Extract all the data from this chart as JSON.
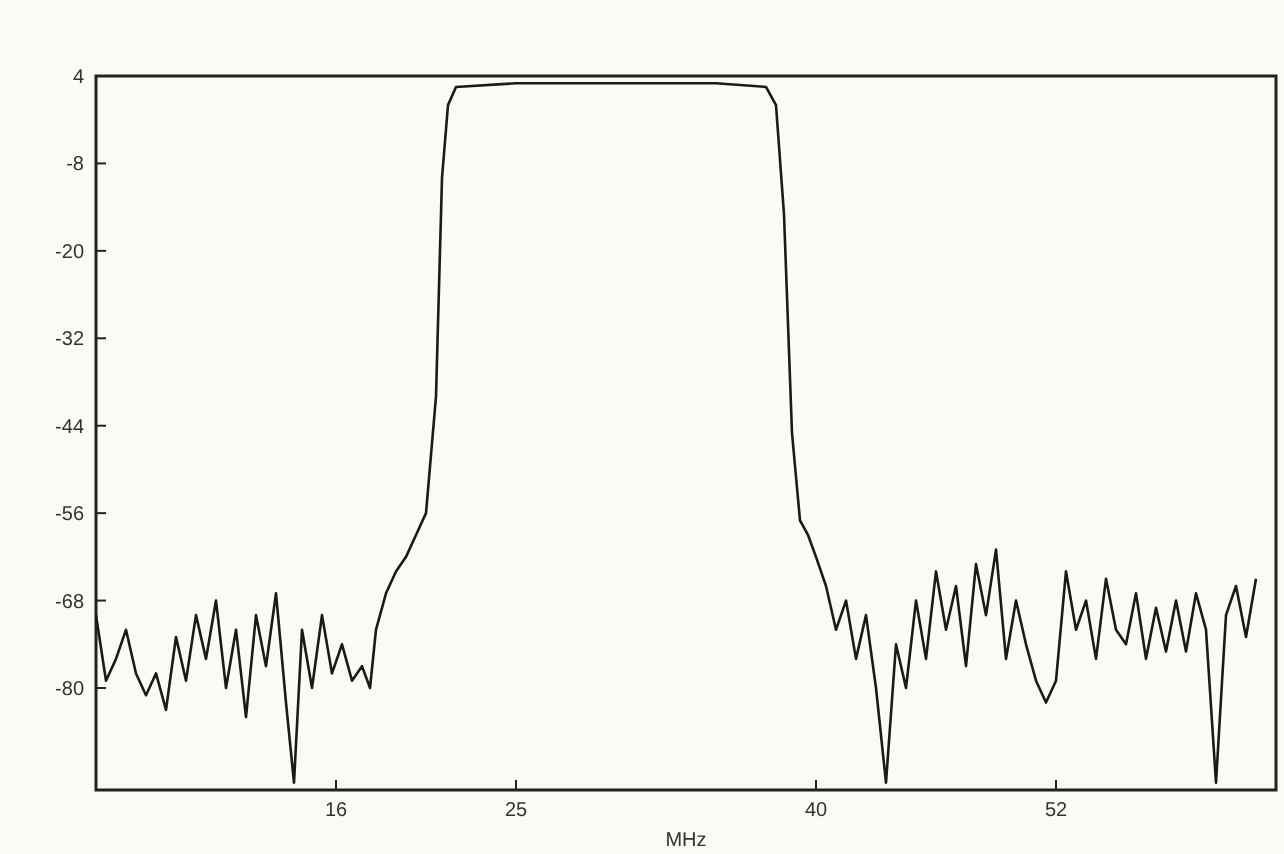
{
  "chart_data": {
    "type": "line",
    "xlabel": "MHz",
    "xlim": [
      4,
      63
    ],
    "xticks": [
      16,
      25,
      40,
      52
    ],
    "ylim": [
      -94,
      4
    ],
    "yticks": [
      4,
      -8,
      -20,
      -32,
      -44,
      -56,
      -68,
      -80
    ],
    "grid": false,
    "marker": "none",
    "line_style": "solid",
    "x": [
      4,
      4.5,
      5,
      5.5,
      6,
      6.5,
      7,
      7.5,
      8,
      8.5,
      9,
      9.5,
      10,
      10.5,
      11,
      11.5,
      12,
      12.5,
      13,
      13.5,
      13.9,
      14.3,
      14.8,
      15.3,
      15.8,
      16.3,
      16.8,
      17.3,
      17.7,
      18,
      18.5,
      19,
      19.5,
      20,
      20.5,
      21,
      21.3,
      21.6,
      22,
      25,
      30,
      35,
      37.5,
      38,
      38.4,
      38.8,
      39.2,
      39.6,
      40,
      40.5,
      41,
      41.5,
      42,
      42.5,
      43,
      43.5,
      44,
      44.5,
      45,
      45.5,
      46,
      46.5,
      47,
      47.5,
      48,
      48.5,
      49,
      49.5,
      50,
      50.5,
      51,
      51.5,
      52,
      52.5,
      53,
      53.5,
      54,
      54.5,
      55,
      55.5,
      56,
      56.5,
      57,
      57.5,
      58,
      58.5,
      59,
      59.5,
      60,
      60.5,
      61,
      61.5,
      62
    ],
    "series": [
      {
        "color": "#1a1a1a",
        "values": [
          -70,
          -79,
          -76,
          -72,
          -78,
          -81,
          -78,
          -83,
          -73,
          -79,
          -70,
          -76,
          -68,
          -80,
          -72,
          -84,
          -70,
          -77,
          -67,
          -82,
          -93,
          -72,
          -80,
          -70,
          -78,
          -74,
          -79,
          -77,
          -80,
          -72,
          -67,
          -64,
          -62,
          -59,
          -56,
          -40,
          -10,
          0,
          2.5,
          3,
          3,
          3,
          2.5,
          0,
          -15,
          -45,
          -57,
          -59,
          -62,
          -66,
          -72,
          -68,
          -76,
          -70,
          -80,
          -93,
          -74,
          -80,
          -68,
          -76,
          -64,
          -72,
          -66,
          -77,
          -63,
          -70,
          -61,
          -76,
          -68,
          -74,
          -79,
          -82,
          -79,
          -64,
          -72,
          -68,
          -76,
          -65,
          -72,
          -74,
          -67,
          -76,
          -69,
          -75,
          -68,
          -75,
          -67,
          -72,
          -93,
          -70,
          -66,
          -73,
          -65
        ]
      }
    ]
  }
}
